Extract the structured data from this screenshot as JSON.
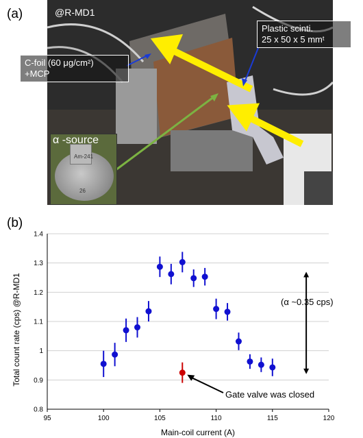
{
  "panel_a": {
    "letter": "(a)",
    "location_tag": "@R-MD1",
    "cfoil_label_line1": "C-foil (60 μg/cm²)",
    "cfoil_label_line2": "+MCP",
    "scint_label_line1": "Plastic scinti.",
    "scint_label_line2": "25 x 50 x 5 mmᵗ",
    "inset_title": "α -source",
    "inset_mark1": "Am-241",
    "inset_mark2": "26",
    "colors": {
      "arrow_yellow": "#ffee00",
      "arrow_green": "#7cb342",
      "label_arrow_blue": "#1a3bd6"
    }
  },
  "panel_b": {
    "letter": "(b)"
  },
  "chart_data": {
    "type": "scatter",
    "xlabel": "Main-coil current (A)",
    "ylabel": "Total count rate (cps) @R-MD1",
    "xlim": [
      95,
      120
    ],
    "ylim": [
      0.8,
      1.4
    ],
    "x_ticks": [
      "95",
      "100",
      "105",
      "110",
      "115",
      "120"
    ],
    "y_ticks": [
      "0.8",
      "0.9",
      "1",
      "1.1",
      "1.2",
      "1.3",
      "1.4"
    ],
    "grid": "horizontal",
    "series": [
      {
        "color": "#1010d0",
        "points": [
          {
            "x": 100,
            "y": 0.955,
            "err": 0.045
          },
          {
            "x": 101,
            "y": 0.987,
            "err": 0.04
          },
          {
            "x": 102,
            "y": 1.07,
            "err": 0.04
          },
          {
            "x": 103,
            "y": 1.08,
            "err": 0.035
          },
          {
            "x": 104,
            "y": 1.135,
            "err": 0.035
          },
          {
            "x": 105,
            "y": 1.287,
            "err": 0.035
          },
          {
            "x": 106,
            "y": 1.262,
            "err": 0.035
          },
          {
            "x": 107,
            "y": 1.303,
            "err": 0.035
          },
          {
            "x": 108,
            "y": 1.248,
            "err": 0.03
          },
          {
            "x": 109,
            "y": 1.253,
            "err": 0.03
          },
          {
            "x": 110,
            "y": 1.143,
            "err": 0.035
          },
          {
            "x": 111,
            "y": 1.133,
            "err": 0.03
          },
          {
            "x": 112,
            "y": 1.032,
            "err": 0.03
          },
          {
            "x": 113,
            "y": 0.963,
            "err": 0.025
          },
          {
            "x": 114,
            "y": 0.952,
            "err": 0.025
          },
          {
            "x": 115,
            "y": 0.943,
            "err": 0.03
          }
        ]
      },
      {
        "color": "#cc0000",
        "points": [
          {
            "x": 107,
            "y": 0.925,
            "err": 0.035
          }
        ]
      }
    ],
    "range_arrow": {
      "x": 118,
      "y_low": 0.92,
      "y_high": 1.27
    },
    "annotations": {
      "alpha_text": "(α ~0.35 cps)",
      "gate_text": "Gate valve was closed"
    }
  }
}
